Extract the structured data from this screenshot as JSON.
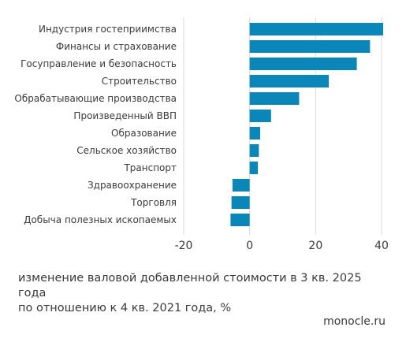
{
  "chart_data": {
    "type": "bar",
    "orientation": "horizontal",
    "categories": [
      "Индустрия гостеприимства",
      "Финансы и страхование",
      "Госуправление и безопасность",
      "Строительство",
      "Обрабатывающие производства",
      "Произведенный ВВП",
      "Образование",
      "Сельское хозяйство",
      "Транспорт",
      "Здравоохранение",
      "Торговля",
      "Добыча полезных ископаемых"
    ],
    "values": [
      40.5,
      36.5,
      32.5,
      24,
      15,
      6.5,
      3.2,
      2.8,
      2.5,
      -5.2,
      -5.5,
      -5.8
    ],
    "xlim": [
      -20,
      40
    ],
    "xticks": [
      "-20",
      "0",
      "20",
      "40"
    ],
    "xtick_values": [
      -20,
      0,
      20,
      40
    ],
    "grid": true,
    "bar_color": "#0a87b8",
    "grid_color": "#d9d9d9",
    "caption": "изменение валовой добавленной стоимости в 3 кв. 2025 года\nпо отношению к 4 кв. 2021 года, %"
  },
  "source": "monocle.ru"
}
